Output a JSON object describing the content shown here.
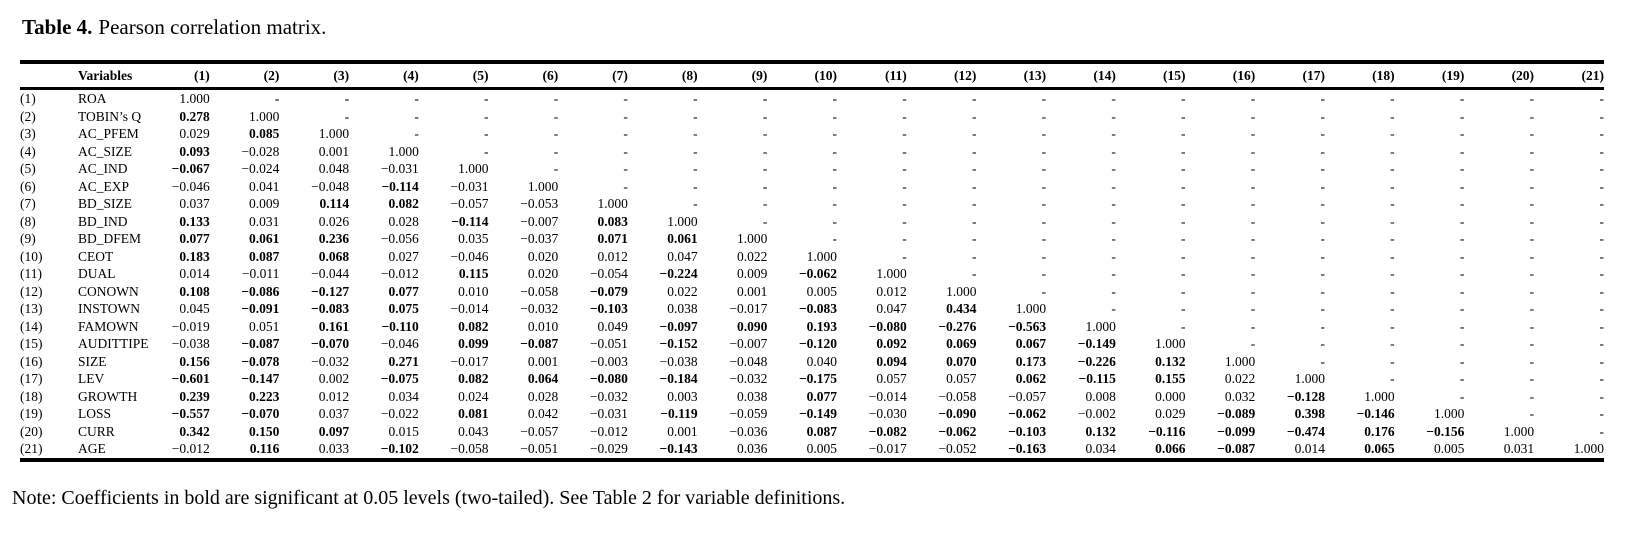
{
  "title": {
    "label": "Table 4.",
    "text": "Pearson correlation matrix."
  },
  "note": "Note: Coefficients in bold are significant at 0.05 levels (two-tailed). See Table 2 for variable definitions.",
  "table": {
    "corner_header": "",
    "variables_header": "Variables",
    "column_headers": [
      "(1)",
      "(2)",
      "(3)",
      "(4)",
      "(5)",
      "(6)",
      "(7)",
      "(8)",
      "(9)",
      "(10)",
      "(11)",
      "(12)",
      "(13)",
      "(14)",
      "(15)",
      "(16)",
      "(17)",
      "(18)",
      "(19)",
      "(20)",
      "(21)"
    ],
    "rows": [
      {
        "num": "(1)",
        "name": "ROA",
        "values": [
          "1.000",
          "-",
          "-",
          "-",
          "-",
          "-",
          "-",
          "-",
          "-",
          "-",
          "-",
          "-",
          "-",
          "-",
          "-",
          "-",
          "-",
          "-",
          "-",
          "-",
          "-"
        ],
        "bold": []
      },
      {
        "num": "(2)",
        "name": "TOBIN’s Q",
        "values": [
          "0.278",
          "1.000",
          "-",
          "-",
          "-",
          "-",
          "-",
          "-",
          "-",
          "-",
          "-",
          "-",
          "-",
          "-",
          "-",
          "-",
          "-",
          "-",
          "-",
          "-",
          "-"
        ],
        "bold": [
          1
        ]
      },
      {
        "num": "(3)",
        "name": "AC_PFEM",
        "values": [
          "0.029",
          "0.085",
          "1.000",
          "-",
          "-",
          "-",
          "-",
          "-",
          "-",
          "-",
          "-",
          "-",
          "-",
          "-",
          "-",
          "-",
          "-",
          "-",
          "-",
          "-",
          "-"
        ],
        "bold": [
          2
        ]
      },
      {
        "num": "(4)",
        "name": "AC_SIZE",
        "values": [
          "0.093",
          "−0.028",
          "0.001",
          "1.000",
          "-",
          "-",
          "-",
          "-",
          "-",
          "-",
          "-",
          "-",
          "-",
          "-",
          "-",
          "-",
          "-",
          "-",
          "-",
          "-",
          "-"
        ],
        "bold": [
          1
        ]
      },
      {
        "num": "(5)",
        "name": "AC_IND",
        "values": [
          "−0.067",
          "−0.024",
          "0.048",
          "−0.031",
          "1.000",
          "-",
          "-",
          "-",
          "-",
          "-",
          "-",
          "-",
          "-",
          "-",
          "-",
          "-",
          "-",
          "-",
          "-",
          "-",
          "-"
        ],
        "bold": [
          1
        ]
      },
      {
        "num": "(6)",
        "name": "AC_EXP",
        "values": [
          "−0.046",
          "0.041",
          "−0.048",
          "−0.114",
          "−0.031",
          "1.000",
          "-",
          "-",
          "-",
          "-",
          "-",
          "-",
          "-",
          "-",
          "-",
          "-",
          "-",
          "-",
          "-",
          "-",
          "-"
        ],
        "bold": [
          4
        ]
      },
      {
        "num": "(7)",
        "name": "BD_SIZE",
        "values": [
          "0.037",
          "0.009",
          "0.114",
          "0.082",
          "−0.057",
          "−0.053",
          "1.000",
          "-",
          "-",
          "-",
          "-",
          "-",
          "-",
          "-",
          "-",
          "-",
          "-",
          "-",
          "-",
          "-",
          "-"
        ],
        "bold": [
          3,
          4
        ]
      },
      {
        "num": "(8)",
        "name": "BD_IND",
        "values": [
          "0.133",
          "0.031",
          "0.026",
          "0.028",
          "−0.114",
          "−0.007",
          "0.083",
          "1.000",
          "-",
          "-",
          "-",
          "-",
          "-",
          "-",
          "-",
          "-",
          "-",
          "-",
          "-",
          "-",
          "-"
        ],
        "bold": [
          1,
          5,
          7
        ]
      },
      {
        "num": "(9)",
        "name": "BD_DFEM",
        "values": [
          "0.077",
          "0.061",
          "0.236",
          "−0.056",
          "0.035",
          "−0.037",
          "0.071",
          "0.061",
          "1.000",
          "-",
          "-",
          "-",
          "-",
          "-",
          "-",
          "-",
          "-",
          "-",
          "-",
          "-",
          "-"
        ],
        "bold": [
          1,
          2,
          3,
          7,
          8
        ]
      },
      {
        "num": "(10)",
        "name": "CEOT",
        "values": [
          "0.183",
          "0.087",
          "0.068",
          "0.027",
          "−0.046",
          "0.020",
          "0.012",
          "0.047",
          "0.022",
          "1.000",
          "-",
          "-",
          "-",
          "-",
          "-",
          "-",
          "-",
          "-",
          "-",
          "-",
          "-"
        ],
        "bold": [
          1,
          2,
          3
        ]
      },
      {
        "num": "(11)",
        "name": "DUAL",
        "values": [
          "0.014",
          "−0.011",
          "−0.044",
          "−0.012",
          "0.115",
          "0.020",
          "−0.054",
          "−0.224",
          "0.009",
          "−0.062",
          "1.000",
          "-",
          "-",
          "-",
          "-",
          "-",
          "-",
          "-",
          "-",
          "-",
          "-"
        ],
        "bold": [
          5,
          8,
          10
        ]
      },
      {
        "num": "(12)",
        "name": "CONOWN",
        "values": [
          "0.108",
          "−0.086",
          "−0.127",
          "0.077",
          "0.010",
          "−0.058",
          "−0.079",
          "0.022",
          "0.001",
          "0.005",
          "0.012",
          "1.000",
          "-",
          "-",
          "-",
          "-",
          "-",
          "-",
          "-",
          "-",
          "-"
        ],
        "bold": [
          1,
          2,
          3,
          4,
          7
        ]
      },
      {
        "num": "(13)",
        "name": "INSTOWN",
        "values": [
          "0.045",
          "−0.091",
          "−0.083",
          "0.075",
          "−0.014",
          "−0.032",
          "−0.103",
          "0.038",
          "−0.017",
          "−0.083",
          "0.047",
          "0.434",
          "1.000",
          "-",
          "-",
          "-",
          "-",
          "-",
          "-",
          "-",
          "-"
        ],
        "bold": [
          2,
          3,
          4,
          7,
          10,
          12
        ]
      },
      {
        "num": "(14)",
        "name": "FAMOWN",
        "values": [
          "−0.019",
          "0.051",
          "0.161",
          "−0.110",
          "0.082",
          "0.010",
          "0.049",
          "−0.097",
          "0.090",
          "0.193",
          "−0.080",
          "−0.276",
          "−0.563",
          "1.000",
          "-",
          "-",
          "-",
          "-",
          "-",
          "-",
          "-"
        ],
        "bold": [
          3,
          4,
          5,
          8,
          9,
          10,
          11,
          12,
          13
        ]
      },
      {
        "num": "(15)",
        "name": "AUDITTIPE",
        "values": [
          "−0.038",
          "−0.087",
          "−0.070",
          "−0.046",
          "0.099",
          "−0.087",
          "−0.051",
          "−0.152",
          "−0.007",
          "−0.120",
          "0.092",
          "0.069",
          "0.067",
          "−0.149",
          "1.000",
          "-",
          "-",
          "-",
          "-",
          "-",
          "-"
        ],
        "bold": [
          2,
          3,
          5,
          6,
          8,
          10,
          11,
          12,
          13,
          14
        ]
      },
      {
        "num": "(16)",
        "name": "SIZE",
        "values": [
          "0.156",
          "−0.078",
          "−0.032",
          "0.271",
          "−0.017",
          "0.001",
          "−0.003",
          "−0.038",
          "−0.048",
          "0.040",
          "0.094",
          "0.070",
          "0.173",
          "−0.226",
          "0.132",
          "1.000",
          "-",
          "-",
          "-",
          "-",
          "-"
        ],
        "bold": [
          1,
          2,
          4,
          11,
          12,
          13,
          14,
          15
        ]
      },
      {
        "num": "(17)",
        "name": "LEV",
        "values": [
          "−0.601",
          "−0.147",
          "0.002",
          "−0.075",
          "0.082",
          "0.064",
          "−0.080",
          "−0.184",
          "−0.032",
          "−0.175",
          "0.057",
          "0.057",
          "0.062",
          "−0.115",
          "0.155",
          "0.022",
          "1.000",
          "-",
          "-",
          "-",
          "-"
        ],
        "bold": [
          1,
          2,
          4,
          5,
          6,
          7,
          8,
          10,
          13,
          14,
          15
        ]
      },
      {
        "num": "(18)",
        "name": "GROWTH",
        "values": [
          "0.239",
          "0.223",
          "0.012",
          "0.034",
          "0.024",
          "0.028",
          "−0.032",
          "0.003",
          "0.038",
          "0.077",
          "−0.014",
          "−0.058",
          "−0.057",
          "0.008",
          "0.000",
          "0.032",
          "−0.128",
          "1.000",
          "-",
          "-",
          "-"
        ],
        "bold": [
          1,
          2,
          10,
          17
        ]
      },
      {
        "num": "(19)",
        "name": "LOSS",
        "values": [
          "−0.557",
          "−0.070",
          "0.037",
          "−0.022",
          "0.081",
          "0.042",
          "−0.031",
          "−0.119",
          "−0.059",
          "−0.149",
          "−0.030",
          "−0.090",
          "−0.062",
          "−0.002",
          "0.029",
          "−0.089",
          "0.398",
          "−0.146",
          "1.000",
          "-",
          "-"
        ],
        "bold": [
          1,
          2,
          5,
          8,
          10,
          12,
          13,
          16,
          17,
          18
        ]
      },
      {
        "num": "(20)",
        "name": "CURR",
        "values": [
          "0.342",
          "0.150",
          "0.097",
          "0.015",
          "0.043",
          "−0.057",
          "−0.012",
          "0.001",
          "−0.036",
          "0.087",
          "−0.082",
          "−0.062",
          "−0.103",
          "0.132",
          "−0.116",
          "−0.099",
          "−0.474",
          "0.176",
          "−0.156",
          "1.000",
          "-"
        ],
        "bold": [
          1,
          2,
          3,
          10,
          11,
          12,
          13,
          14,
          15,
          16,
          17,
          18,
          19
        ]
      },
      {
        "num": "(21)",
        "name": "AGE",
        "values": [
          "−0.012",
          "0.116",
          "0.033",
          "−0.102",
          "−0.058",
          "−0.051",
          "−0.029",
          "−0.143",
          "0.036",
          "0.005",
          "−0.017",
          "−0.052",
          "−0.163",
          "0.034",
          "0.066",
          "−0.087",
          "0.014",
          "0.065",
          "0.005",
          "0.031",
          "1.000"
        ],
        "bold": [
          2,
          4,
          8,
          13,
          15,
          16,
          18
        ]
      }
    ]
  }
}
